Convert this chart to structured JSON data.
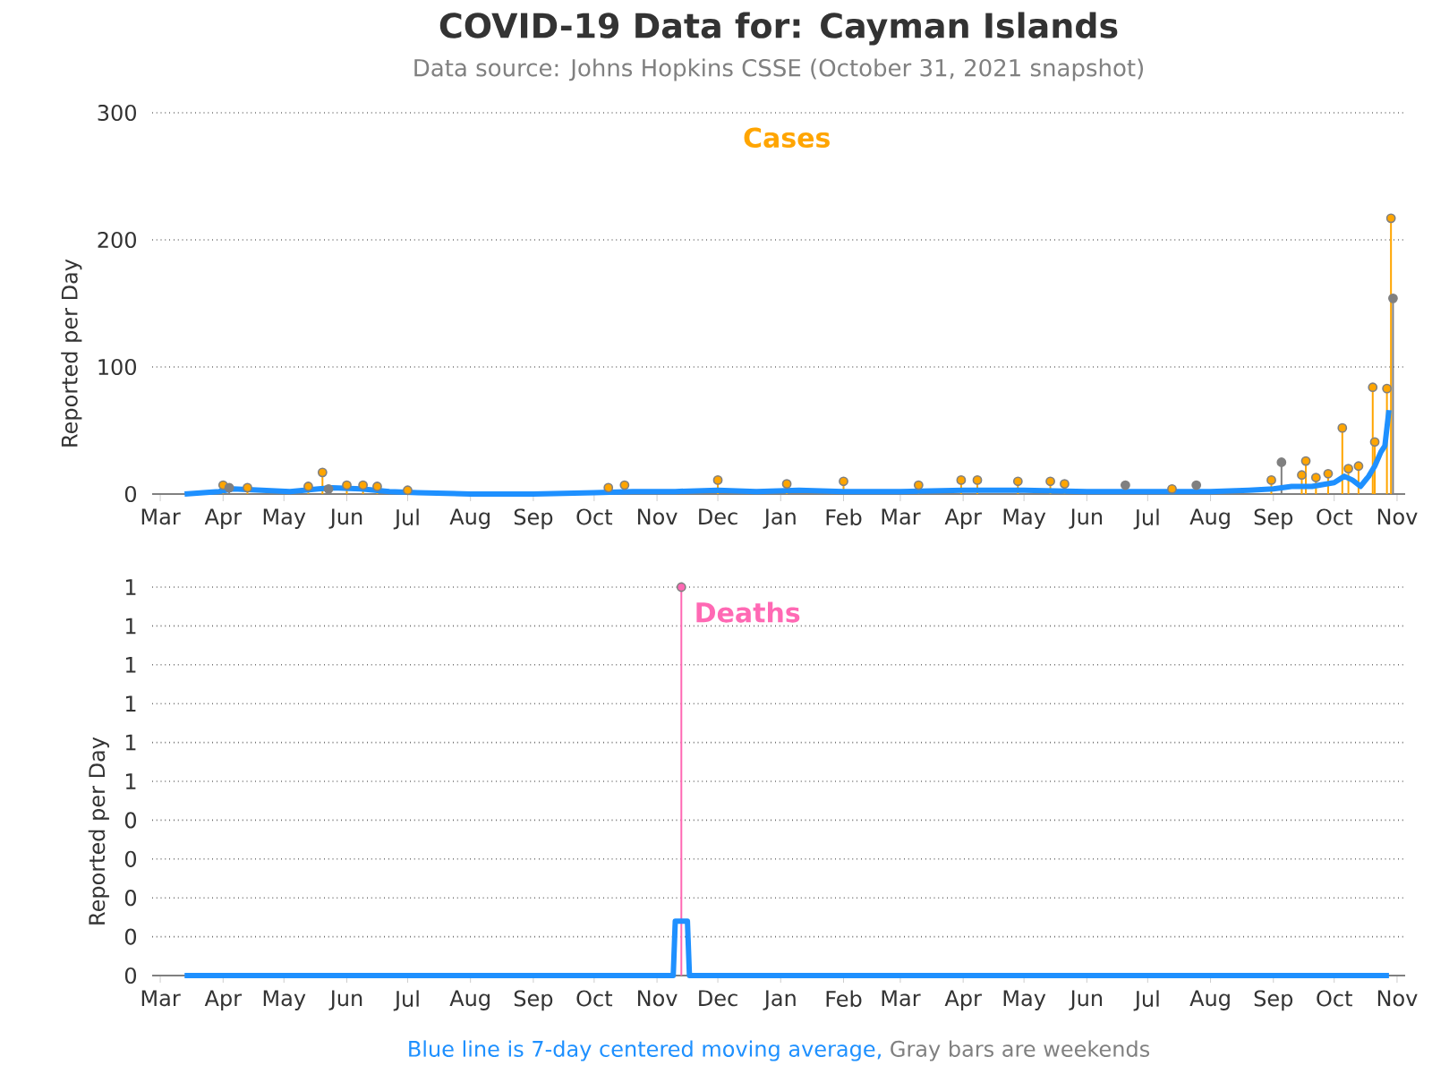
{
  "chart_data": [
    {
      "type": "lollipop",
      "title": "COVID-19 Data for: Cayman Islands",
      "subtitle": "Data source: Johns Hopkins CSSE (October 31, 2021 snapshot)",
      "ylabel": "Reported per Day",
      "annotations": [
        "Cases"
      ],
      "marker": "circle",
      "grid": "y",
      "xlim": [
        "2020-02-26",
        "2021-11-05"
      ],
      "ylim": [
        0,
        300
      ],
      "yticks": [
        0,
        100,
        200,
        300
      ],
      "xticks": [
        {
          "value": "2020-03-01",
          "label": "Mar"
        },
        {
          "value": "2020-04-01",
          "label": "Apr"
        },
        {
          "value": "2020-05-01",
          "label": "May"
        },
        {
          "value": "2020-06-01",
          "label": "Jun"
        },
        {
          "value": "2020-07-01",
          "label": "Jul"
        },
        {
          "value": "2020-08-01",
          "label": "Aug"
        },
        {
          "value": "2020-09-01",
          "label": "Sep"
        },
        {
          "value": "2020-10-01",
          "label": "Oct"
        },
        {
          "value": "2020-11-01",
          "label": "Nov"
        },
        {
          "value": "2020-12-01",
          "label": "Dec"
        },
        {
          "value": "2021-01-01",
          "label": "Jan"
        },
        {
          "value": "2021-02-01",
          "label": "Feb"
        },
        {
          "value": "2021-03-01",
          "label": "Mar"
        },
        {
          "value": "2021-04-01",
          "label": "Apr"
        },
        {
          "value": "2021-05-01",
          "label": "May"
        },
        {
          "value": "2021-06-01",
          "label": "Jun"
        },
        {
          "value": "2021-07-01",
          "label": "Jul"
        },
        {
          "value": "2021-08-01",
          "label": "Aug"
        },
        {
          "value": "2021-09-01",
          "label": "Sep"
        },
        {
          "value": "2021-10-01",
          "label": "Oct"
        },
        {
          "value": "2021-11-01",
          "label": "Nov"
        }
      ],
      "series": [
        {
          "color": "#ffa500",
          "x": [
            "2020-04-01",
            "2020-04-13",
            "2020-05-13",
            "2020-05-20",
            "2020-06-01",
            "2020-06-09",
            "2020-06-16",
            "2020-07-01",
            "2020-10-08",
            "2020-10-16",
            "2020-12-01",
            "2021-01-04",
            "2021-02-01",
            "2021-03-10",
            "2021-03-31",
            "2021-04-08",
            "2021-04-28",
            "2021-05-14",
            "2021-05-21",
            "2021-07-13",
            "2021-08-31",
            "2021-09-15",
            "2021-09-17",
            "2021-09-22",
            "2021-09-28",
            "2021-10-05",
            "2021-10-08",
            "2021-10-13",
            "2021-10-20",
            "2021-10-21",
            "2021-10-27",
            "2021-10-29"
          ],
          "values": [
            7,
            5,
            6,
            17,
            7,
            7,
            6,
            3,
            5,
            7,
            11,
            8,
            10,
            7,
            11,
            11,
            10,
            10,
            8,
            4,
            11,
            15,
            26,
            13,
            16,
            52,
            20,
            22,
            84,
            41,
            83,
            217
          ]
        },
        {
          "color": "#808080",
          "x": [
            "2020-04-04",
            "2020-05-23",
            "2021-06-20",
            "2021-07-25",
            "2021-09-05",
            "2021-10-30"
          ],
          "values": [
            5,
            4,
            7,
            7,
            25,
            154
          ]
        },
        {
          "type": "line",
          "marker": "none",
          "color": "#1e90ff",
          "x": [
            "2020-03-13",
            "2020-03-30",
            "2020-04-06",
            "2020-04-20",
            "2020-05-04",
            "2020-05-18",
            "2020-05-25",
            "2020-06-08",
            "2020-06-22",
            "2020-07-06",
            "2020-08-01",
            "2020-09-01",
            "2020-10-01",
            "2020-10-20",
            "2020-11-10",
            "2020-12-01",
            "2020-12-20",
            "2021-01-10",
            "2021-02-01",
            "2021-03-01",
            "2021-04-01",
            "2021-05-01",
            "2021-06-01",
            "2021-07-01",
            "2021-08-01",
            "2021-08-20",
            "2021-09-01",
            "2021-09-10",
            "2021-09-20",
            "2021-10-01",
            "2021-10-06",
            "2021-10-10",
            "2021-10-14",
            "2021-10-18",
            "2021-10-21",
            "2021-10-24",
            "2021-10-26",
            "2021-10-28"
          ],
          "values": [
            0,
            2,
            4,
            3,
            2,
            4,
            5,
            4,
            2,
            1,
            0,
            0,
            1,
            2,
            2,
            3,
            2,
            3,
            2,
            2,
            3,
            3,
            2,
            2,
            2,
            3,
            4,
            6,
            6,
            9,
            14,
            11,
            6,
            14,
            22,
            33,
            38,
            66
          ]
        }
      ]
    },
    {
      "type": "lollipop",
      "ylabel": "Reported per Day",
      "annotations": [
        "Deaths",
        "Blue line is 7-day centered moving average,",
        "Gray bars are weekends"
      ],
      "marker": "circle",
      "grid": "y",
      "xlim": [
        "2020-02-26",
        "2021-11-05"
      ],
      "ylim": [
        0,
        1
      ],
      "yticks": [
        {
          "value": 0,
          "label": "0"
        },
        {
          "value": 0.1,
          "label": "0"
        },
        {
          "value": 0.2,
          "label": "0"
        },
        {
          "value": 0.3,
          "label": "0"
        },
        {
          "value": 0.4,
          "label": "0"
        },
        {
          "value": 0.5,
          "label": "1"
        },
        {
          "value": 0.6,
          "label": "1"
        },
        {
          "value": 0.7,
          "label": "1"
        },
        {
          "value": 0.8,
          "label": "1"
        },
        {
          "value": 0.9,
          "label": "1"
        },
        {
          "value": 1,
          "label": "1"
        }
      ],
      "xticks": [
        {
          "value": "2020-03-01",
          "label": "Mar"
        },
        {
          "value": "2020-04-01",
          "label": "Apr"
        },
        {
          "value": "2020-05-01",
          "label": "May"
        },
        {
          "value": "2020-06-01",
          "label": "Jun"
        },
        {
          "value": "2020-07-01",
          "label": "Jul"
        },
        {
          "value": "2020-08-01",
          "label": "Aug"
        },
        {
          "value": "2020-09-01",
          "label": "Sep"
        },
        {
          "value": "2020-10-01",
          "label": "Oct"
        },
        {
          "value": "2020-11-01",
          "label": "Nov"
        },
        {
          "value": "2020-12-01",
          "label": "Dec"
        },
        {
          "value": "2021-01-01",
          "label": "Jan"
        },
        {
          "value": "2021-02-01",
          "label": "Feb"
        },
        {
          "value": "2021-03-01",
          "label": "Mar"
        },
        {
          "value": "2021-04-01",
          "label": "Apr"
        },
        {
          "value": "2021-05-01",
          "label": "May"
        },
        {
          "value": "2021-06-01",
          "label": "Jun"
        },
        {
          "value": "2021-07-01",
          "label": "Jul"
        },
        {
          "value": "2021-08-01",
          "label": "Aug"
        },
        {
          "value": "2021-09-01",
          "label": "Sep"
        },
        {
          "value": "2021-10-01",
          "label": "Oct"
        },
        {
          "value": "2021-11-01",
          "label": "Nov"
        }
      ],
      "series": [
        {
          "color": "#ff69b4",
          "x": [
            "2020-11-13"
          ],
          "values": [
            1
          ]
        },
        {
          "type": "line",
          "marker": "none",
          "color": "#1e90ff",
          "x": [
            "2020-03-13",
            "2020-11-09",
            "2020-11-10",
            "2020-11-16",
            "2020-11-17",
            "2021-10-28"
          ],
          "values": [
            0,
            0,
            0.14,
            0.14,
            0,
            0
          ]
        }
      ]
    }
  ]
}
